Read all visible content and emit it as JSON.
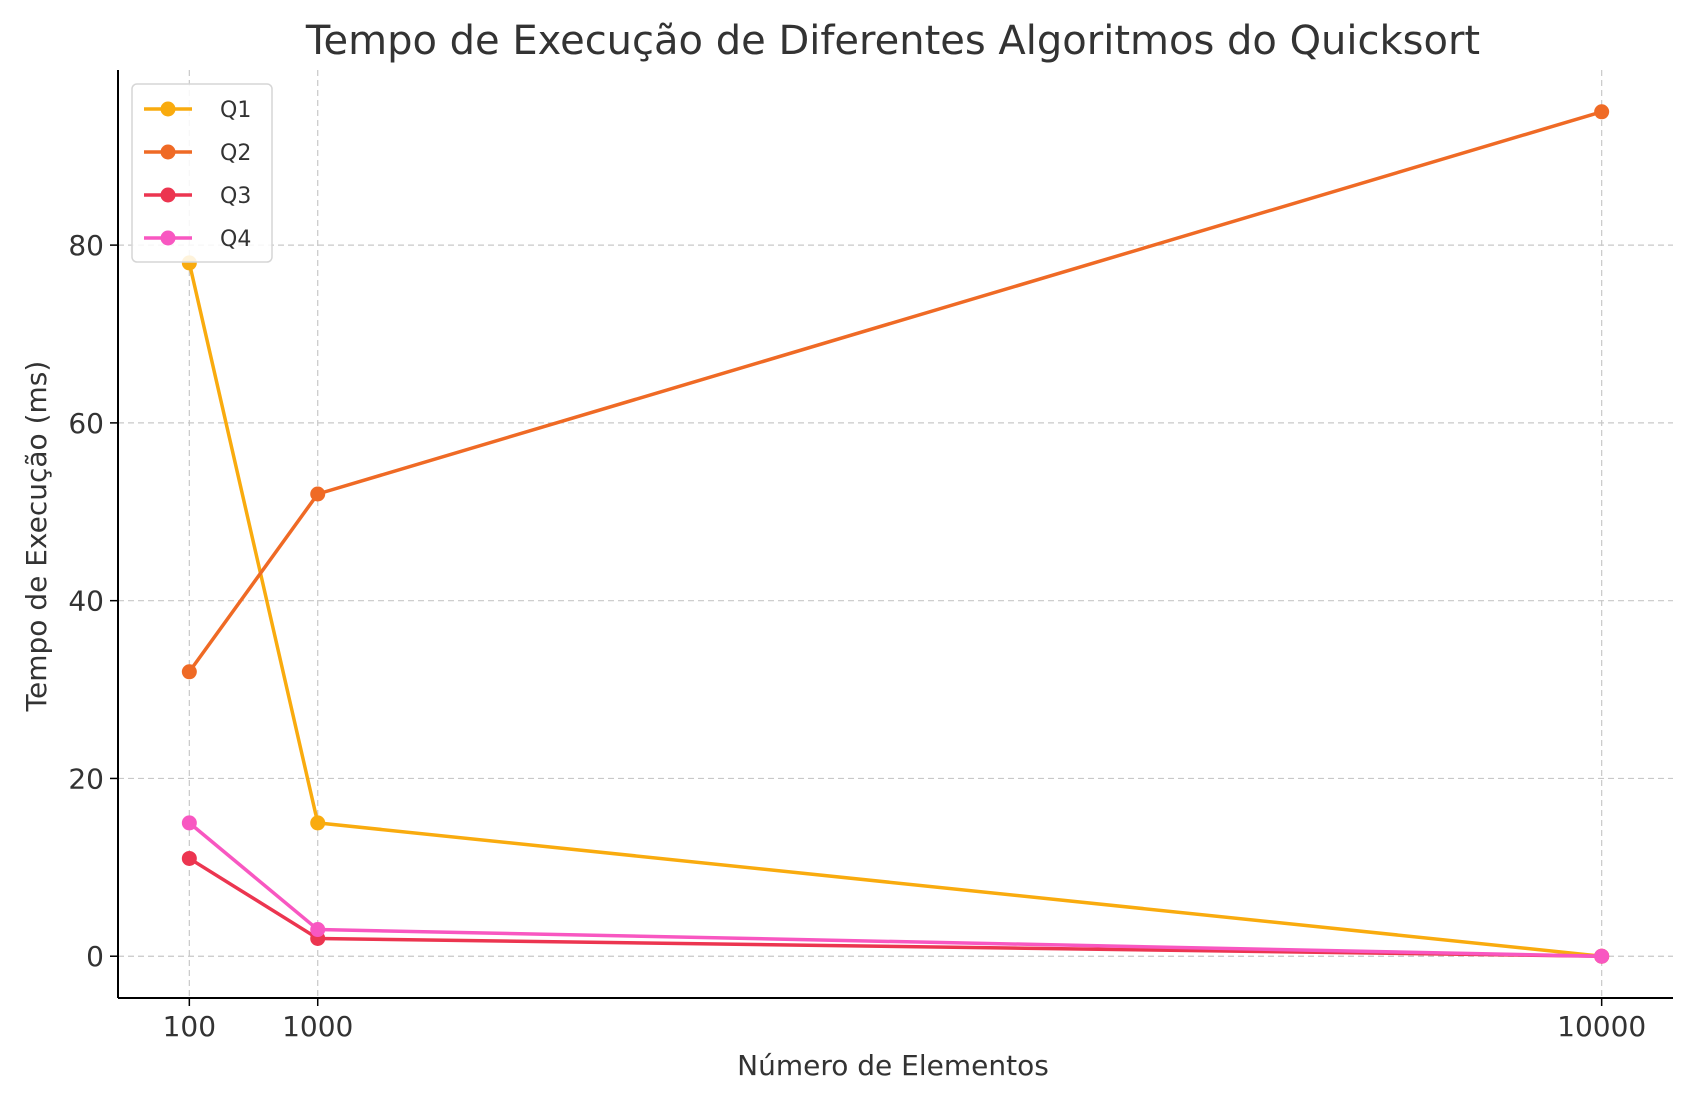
{
  "chart_data": {
    "type": "line",
    "title": "Tempo de Execução de Diferentes Algoritmos do Quicksort",
    "xlabel": "Número de Elementos",
    "ylabel": "Tempo de Execução (ms)",
    "x": [
      100,
      1000,
      10000
    ],
    "x_tick_labels": [
      "100",
      "1000",
      "10000"
    ],
    "xlim": [
      -400,
      10500
    ],
    "ylim": [
      -4.7,
      99.7
    ],
    "y_ticks": [
      0,
      20,
      40,
      60,
      80
    ],
    "y_tick_labels": [
      "0",
      "20",
      "40",
      "60",
      "80"
    ],
    "grid": true,
    "legend_position": "top-left",
    "series": [
      {
        "name": "Q1",
        "color": "#f9ab0e",
        "values": [
          78,
          15,
          0
        ]
      },
      {
        "name": "Q2",
        "color": "#ef6a25",
        "values": [
          32,
          52,
          95
        ]
      },
      {
        "name": "Q3",
        "color": "#ec3550",
        "values": [
          11,
          2,
          0
        ]
      },
      {
        "name": "Q4",
        "color": "#f857c1",
        "values": [
          15,
          3,
          0
        ]
      }
    ]
  }
}
